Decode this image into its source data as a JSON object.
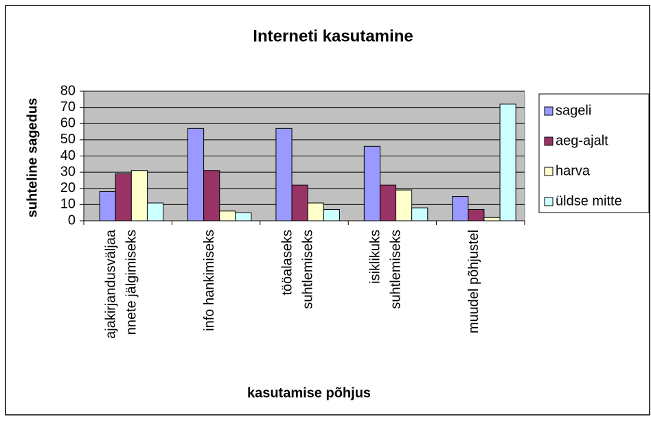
{
  "chart_data": {
    "type": "bar",
    "title": "Interneti kasutamine",
    "x_label": "kasutamise põhjus",
    "y_label": "suhteline sagedus",
    "categories": [
      [
        "ajakirjandusväljaa",
        "nnete jälgimiseks"
      ],
      [
        "info hankimiseks"
      ],
      [
        "tööalaseks",
        "suhtlemiseks"
      ],
      [
        "isiklikuks",
        "suhtlemiseks"
      ],
      [
        "muudel põhjustel"
      ]
    ],
    "series": [
      {
        "name": "sageli",
        "color": "#9999ff",
        "values": [
          18,
          57,
          57,
          46,
          15
        ]
      },
      {
        "name": "aeg-ajalt",
        "color": "#993366",
        "values": [
          29,
          31,
          22,
          22,
          7
        ]
      },
      {
        "name": "harva",
        "color": "#ffffcc",
        "values": [
          31,
          6,
          11,
          19,
          2
        ]
      },
      {
        "name": "üldse mitte",
        "color": "#ccffff",
        "values": [
          11,
          5,
          7,
          8,
          72
        ]
      }
    ],
    "ylim": [
      0,
      80
    ],
    "yticks": [
      0,
      10,
      20,
      30,
      40,
      50,
      60,
      70,
      80
    ],
    "grid": true,
    "plot_background": "#c0c0c0",
    "legend": "right"
  }
}
